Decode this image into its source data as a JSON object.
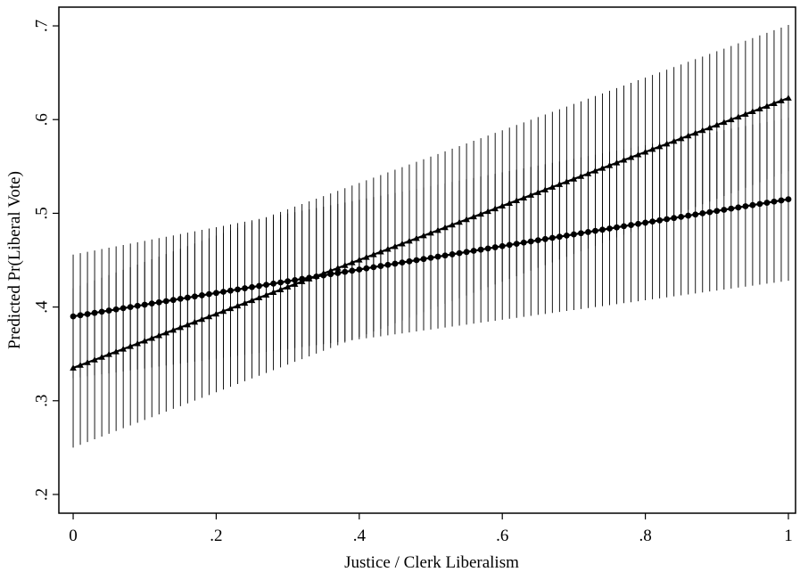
{
  "chart_data": {
    "type": "line",
    "title": "",
    "xlabel": "Justice / Clerk Liberalism",
    "ylabel": "Predicted Pr(Liberal Vote)",
    "xlim": [
      -0.02,
      1.01
    ],
    "ylim": [
      0.18,
      0.72
    ],
    "x_ticks": [
      0,
      0.2,
      0.4,
      0.6,
      0.8,
      1
    ],
    "x_tick_labels": [
      "0",
      ".2",
      ".4",
      ".6",
      ".8",
      "1"
    ],
    "y_ticks": [
      0.2,
      0.3,
      0.4,
      0.5,
      0.6,
      0.7
    ],
    "y_tick_labels": [
      ".2",
      ".3",
      ".4",
      ".5",
      ".6",
      ".7"
    ],
    "grid": false,
    "legend": "none",
    "point_spacing": 0.01,
    "series": [
      {
        "marker": "circle",
        "color": "#000000",
        "x_range": [
          0,
          1
        ],
        "y_start": 0.39,
        "y_end": 0.515,
        "ci_halfwidth_start": 0.066,
        "ci_halfwidth_end": 0.087
      },
      {
        "marker": "triangle",
        "color": "#000000",
        "x_range": [
          0,
          1
        ],
        "y_start": 0.335,
        "y_end": 0.623,
        "ci_halfwidth_start": 0.085,
        "ci_halfwidth_end": 0.078
      }
    ]
  }
}
